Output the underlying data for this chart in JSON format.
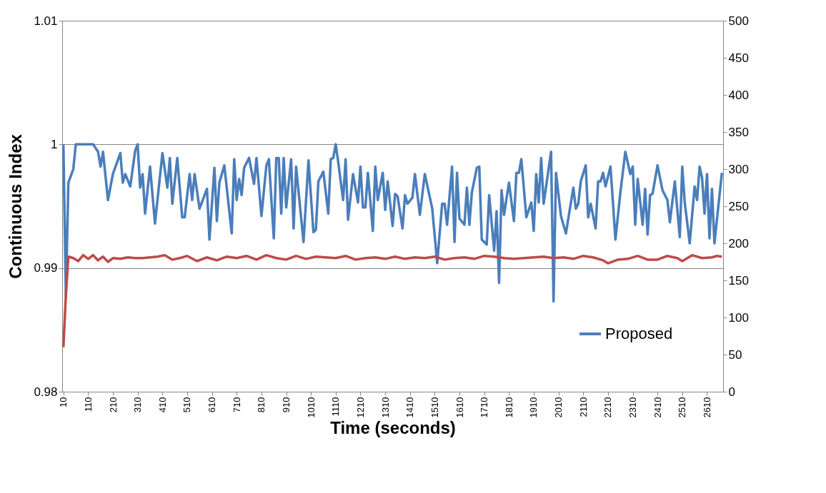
{
  "chart_data": {
    "type": "line",
    "xlabel": "Time (seconds)",
    "ylabel": "Continuous Index",
    "xlim": [
      5,
      2675
    ],
    "xticks": [
      10,
      110,
      210,
      310,
      410,
      510,
      610,
      710,
      810,
      910,
      1010,
      1110,
      1210,
      1310,
      1410,
      1510,
      1610,
      1710,
      1810,
      1910,
      2010,
      2110,
      2210,
      2310,
      2410,
      2510,
      2610
    ],
    "ylim": [
      0.98,
      1.01
    ],
    "yticks": [
      0.98,
      0.99,
      1,
      1.01
    ],
    "y2lim": [
      0,
      500
    ],
    "y2ticks": [
      0,
      50,
      100,
      150,
      200,
      250,
      300,
      350,
      400,
      450,
      500
    ],
    "grid": "y",
    "legend": "bottom right",
    "marker": "none",
    "line_style": "solid",
    "series": [
      {
        "name": "Proposed",
        "color": "#4a7ebb",
        "x": [
          10,
          20,
          30,
          50,
          60,
          130,
          150,
          160,
          170,
          190,
          210,
          240,
          250,
          260,
          280,
          300,
          310,
          320,
          330,
          340,
          360,
          380,
          410,
          430,
          440,
          450,
          470,
          490,
          500,
          520,
          530,
          540,
          560,
          590,
          600,
          620,
          630,
          640,
          660,
          690,
          700,
          710,
          720,
          730,
          740,
          760,
          780,
          790,
          810,
          830,
          840,
          860,
          870,
          880,
          890,
          900,
          910,
          930,
          940,
          950,
          980,
          1000,
          1020,
          1030,
          1040,
          1060,
          1080,
          1090,
          1100,
          1110,
          1120,
          1140,
          1150,
          1160,
          1180,
          1200,
          1210,
          1220,
          1230,
          1240,
          1260,
          1270,
          1280,
          1300,
          1310,
          1320,
          1340,
          1350,
          1360,
          1380,
          1390,
          1400,
          1420,
          1430,
          1450,
          1470,
          1500,
          1520,
          1540,
          1550,
          1560,
          1580,
          1590,
          1600,
          1610,
          1630,
          1640,
          1650,
          1660,
          1680,
          1690,
          1700,
          1720,
          1730,
          1750,
          1760,
          1770,
          1780,
          1790,
          1810,
          1830,
          1840,
          1850,
          1860,
          1880,
          1900,
          1910,
          1920,
          1930,
          1940,
          1950,
          1980,
          1990,
          2000,
          2020,
          2040,
          2070,
          2080,
          2090,
          2100,
          2120,
          2130,
          2140,
          2160,
          2170,
          2180,
          2190,
          2200,
          2220,
          2230,
          2240,
          2260,
          2280,
          2300,
          2310,
          2320,
          2330,
          2350,
          2360,
          2370,
          2380,
          2390,
          2410,
          2430,
          2450,
          2460,
          2480,
          2500,
          2510,
          2520,
          2540,
          2560,
          2570,
          2580,
          2590,
          2600,
          2610,
          2620,
          2630,
          2640,
          2670
        ],
        "values": [
          1.0,
          0.9877,
          0.9969,
          0.998,
          1.0,
          1.0,
          0.9994,
          0.9982,
          0.9994,
          0.9955,
          0.9976,
          0.9993,
          0.9969,
          0.9976,
          0.9966,
          0.9995,
          1.0,
          0.9965,
          0.9976,
          0.9944,
          0.9982,
          0.9936,
          0.9993,
          0.9965,
          0.9989,
          0.9952,
          0.9989,
          0.9941,
          0.9941,
          0.9976,
          0.9955,
          0.9976,
          0.9948,
          0.9964,
          0.9923,
          0.9981,
          0.9938,
          0.9969,
          0.9983,
          0.9928,
          0.9988,
          0.9955,
          0.9972,
          0.9959,
          0.9981,
          0.9989,
          0.9968,
          0.9989,
          0.9942,
          0.9983,
          0.9988,
          0.9924,
          0.9989,
          0.9989,
          0.9944,
          0.9989,
          0.9949,
          0.9988,
          0.9932,
          0.9982,
          0.9921,
          0.9987,
          0.9929,
          0.9931,
          0.997,
          0.9978,
          0.9944,
          0.9988,
          0.9989,
          1.0,
          0.9986,
          0.9955,
          0.9988,
          0.9939,
          0.9976,
          0.9953,
          0.9982,
          0.9949,
          0.9949,
          0.9977,
          0.993,
          0.9982,
          0.9955,
          0.9977,
          0.9947,
          0.997,
          0.9934,
          0.996,
          0.9958,
          0.9932,
          0.9959,
          0.9952,
          0.9957,
          0.9976,
          0.9943,
          0.9976,
          0.9948,
          0.9904,
          0.9952,
          0.9952,
          0.9935,
          0.9982,
          0.9921,
          0.9977,
          0.994,
          0.9935,
          0.9965,
          0.9935,
          0.9961,
          0.9981,
          0.9982,
          0.9923,
          0.9919,
          0.9959,
          0.9914,
          0.9946,
          0.9888,
          0.9963,
          0.9943,
          0.9969,
          0.9938,
          0.9977,
          0.9977,
          0.9988,
          0.9941,
          0.9953,
          0.993,
          0.9976,
          0.9953,
          0.9989,
          0.9952,
          0.9994,
          0.9873,
          0.9977,
          0.9942,
          0.9928,
          0.9965,
          0.9948,
          0.9952,
          0.997,
          0.9983,
          0.9941,
          0.9952,
          0.9932,
          0.997,
          0.997,
          0.9977,
          0.9966,
          0.9982,
          0.9953,
          0.9923,
          0.9961,
          0.9994,
          0.9976,
          0.9982,
          0.9935,
          0.9972,
          0.9935,
          0.9964,
          0.9927,
          0.9959,
          0.996,
          0.9983,
          0.9963,
          0.9955,
          0.9937,
          0.997,
          0.9925,
          0.9982,
          0.9953,
          0.992,
          0.9966,
          0.9955,
          0.9982,
          0.9973,
          0.9944,
          0.9976,
          0.9924,
          0.9964,
          0.992,
          0.9977
        ]
      },
      {
        "color": "#be4b48",
        "axis": "y2",
        "x": [
          10,
          20,
          30,
          50,
          70,
          90,
          110,
          130,
          150,
          170,
          190,
          210,
          240,
          270,
          300,
          330,
          360,
          390,
          420,
          450,
          480,
          510,
          550,
          590,
          630,
          670,
          710,
          750,
          790,
          830,
          870,
          910,
          950,
          990,
          1030,
          1070,
          1110,
          1150,
          1190,
          1230,
          1270,
          1310,
          1350,
          1390,
          1430,
          1470,
          1510,
          1550,
          1590,
          1630,
          1670,
          1710,
          1750,
          1790,
          1830,
          1870,
          1910,
          1950,
          1990,
          2030,
          2070,
          2110,
          2150,
          2190,
          2210,
          2250,
          2290,
          2330,
          2370,
          2410,
          2450,
          2490,
          2510,
          2550,
          2590,
          2630,
          2650,
          2670
        ],
        "values": [
          60,
          130,
          182,
          180,
          176,
          184,
          179,
          184,
          177,
          182,
          175,
          180,
          179,
          181,
          180,
          180,
          181,
          182,
          184,
          178,
          180,
          183,
          176,
          181,
          177,
          182,
          180,
          183,
          178,
          184,
          180,
          178,
          183,
          179,
          182,
          181,
          180,
          183,
          178,
          180,
          181,
          179,
          182,
          179,
          181,
          180,
          182,
          178,
          180,
          181,
          179,
          183,
          182,
          180,
          179,
          180,
          181,
          182,
          180,
          181,
          179,
          183,
          181,
          177,
          173,
          178,
          179,
          183,
          178,
          178,
          183,
          180,
          176,
          184,
          180,
          181,
          183,
          182
        ]
      }
    ]
  }
}
